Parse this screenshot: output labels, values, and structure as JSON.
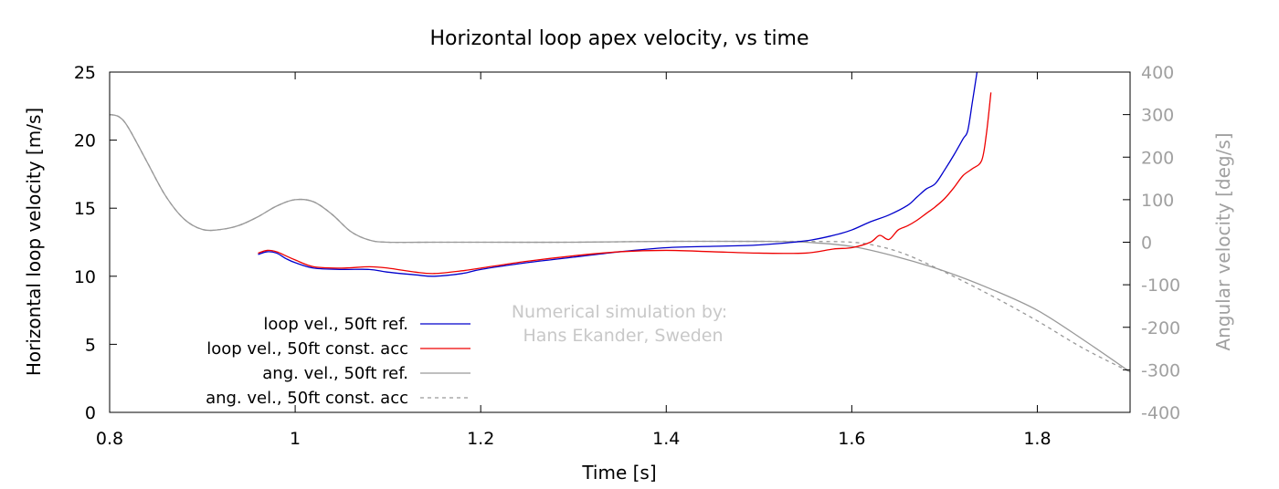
{
  "chart_data": {
    "type": "line",
    "title": "Horizontal loop apex velocity, vs time",
    "xlabel": "Time [s]",
    "ylabel": "Horizontal loop velocity [m/s]",
    "y2label": "Angular velocity [deg/s]",
    "xlim": [
      0.8,
      1.9
    ],
    "ylim": [
      0,
      25
    ],
    "y2lim": [
      -400,
      400
    ],
    "xticks": [
      0.8,
      1,
      1.2,
      1.4,
      1.6,
      1.8
    ],
    "xtick_labels": [
      "0.8",
      "1",
      "1.2",
      "1.4",
      "1.6",
      "1.8"
    ],
    "yticks": [
      0,
      5,
      10,
      15,
      20,
      25
    ],
    "ytick_labels": [
      "0",
      "5",
      "10",
      "15",
      "20",
      "25"
    ],
    "y2ticks": [
      -400,
      -300,
      -200,
      -100,
      0,
      100,
      200,
      300,
      400
    ],
    "y2tick_labels": [
      "-400",
      "-300",
      "-200",
      "-100",
      "0",
      "100",
      "200",
      "300",
      "400"
    ],
    "grid": false,
    "legend_position": "bottom-left",
    "annotation": [
      "Numerical simulation by:",
      "Hans Ekander, Sweden"
    ],
    "colors": {
      "blue": "#0000cc",
      "red": "#ee0000",
      "gray": "#999999",
      "axis": "#000000",
      "right_axis": "#a0a0a0",
      "annotation": "#c8c8c8"
    },
    "series": [
      {
        "name": "loop vel., 50ft ref.",
        "axis": "left",
        "color": "#0000cc",
        "dash": "solid",
        "x": [
          0.96,
          0.97,
          0.98,
          0.99,
          1.0,
          1.02,
          1.05,
          1.08,
          1.1,
          1.13,
          1.15,
          1.18,
          1.2,
          1.25,
          1.3,
          1.35,
          1.4,
          1.45,
          1.5,
          1.55,
          1.58,
          1.6,
          1.62,
          1.64,
          1.66,
          1.67,
          1.68,
          1.69,
          1.7,
          1.71,
          1.72,
          1.725,
          1.73,
          1.735
        ],
        "y": [
          11.6,
          11.8,
          11.7,
          11.3,
          11.0,
          10.6,
          10.5,
          10.5,
          10.3,
          10.1,
          10.0,
          10.2,
          10.5,
          11.0,
          11.4,
          11.8,
          12.1,
          12.2,
          12.3,
          12.6,
          13.0,
          13.4,
          14.0,
          14.5,
          15.2,
          15.8,
          16.4,
          16.8,
          17.8,
          18.9,
          20.1,
          20.7,
          22.8,
          25.0
        ]
      },
      {
        "name": "loop vel., 50ft const. acc",
        "axis": "left",
        "color": "#ee0000",
        "dash": "solid",
        "x": [
          0.96,
          0.97,
          0.98,
          0.99,
          1.0,
          1.02,
          1.05,
          1.08,
          1.1,
          1.13,
          1.15,
          1.18,
          1.2,
          1.25,
          1.3,
          1.35,
          1.4,
          1.45,
          1.5,
          1.55,
          1.58,
          1.6,
          1.62,
          1.63,
          1.64,
          1.65,
          1.66,
          1.67,
          1.68,
          1.69,
          1.7,
          1.71,
          1.72,
          1.73,
          1.74,
          1.745,
          1.75
        ],
        "y": [
          11.7,
          11.9,
          11.8,
          11.5,
          11.2,
          10.7,
          10.6,
          10.7,
          10.6,
          10.3,
          10.2,
          10.4,
          10.6,
          11.1,
          11.5,
          11.8,
          11.9,
          11.8,
          11.7,
          11.7,
          12.0,
          12.1,
          12.5,
          13.0,
          12.7,
          13.4,
          13.7,
          14.1,
          14.6,
          15.1,
          15.7,
          16.5,
          17.4,
          17.9,
          18.5,
          20.4,
          23.5
        ]
      },
      {
        "name": "ang. vel., 50ft ref.",
        "axis": "right",
        "color": "#999999",
        "dash": "solid",
        "x": [
          0.8,
          0.81,
          0.82,
          0.84,
          0.86,
          0.88,
          0.9,
          0.92,
          0.94,
          0.96,
          0.98,
          1.0,
          1.02,
          1.04,
          1.06,
          1.08,
          1.1,
          1.15,
          1.2,
          1.3,
          1.4,
          1.5,
          1.55,
          1.6,
          1.65,
          1.7,
          1.75,
          1.8,
          1.85,
          1.9
        ],
        "y": [
          300,
          295,
          270,
          190,
          110,
          55,
          30,
          30,
          40,
          60,
          85,
          100,
          95,
          65,
          25,
          5,
          0,
          0,
          0,
          0,
          2,
          2,
          0,
          -10,
          -35,
          -68,
          -110,
          -160,
          -230,
          -305
        ]
      },
      {
        "name": "ang. vel., 50ft const. acc",
        "axis": "right",
        "color": "#999999",
        "dash": "dashed",
        "x": [
          0.8,
          0.81,
          0.82,
          0.84,
          0.86,
          0.88,
          0.9,
          0.92,
          0.94,
          0.96,
          0.98,
          1.0,
          1.02,
          1.04,
          1.06,
          1.08,
          1.1,
          1.15,
          1.2,
          1.3,
          1.4,
          1.5,
          1.55,
          1.6,
          1.63,
          1.66,
          1.7,
          1.75,
          1.8,
          1.85,
          1.9
        ],
        "y": [
          300,
          295,
          270,
          190,
          110,
          55,
          30,
          30,
          40,
          60,
          85,
          100,
          95,
          65,
          25,
          5,
          0,
          0,
          0,
          0,
          2,
          2,
          2,
          0,
          -10,
          -30,
          -70,
          -125,
          -185,
          -250,
          -305
        ]
      }
    ]
  }
}
